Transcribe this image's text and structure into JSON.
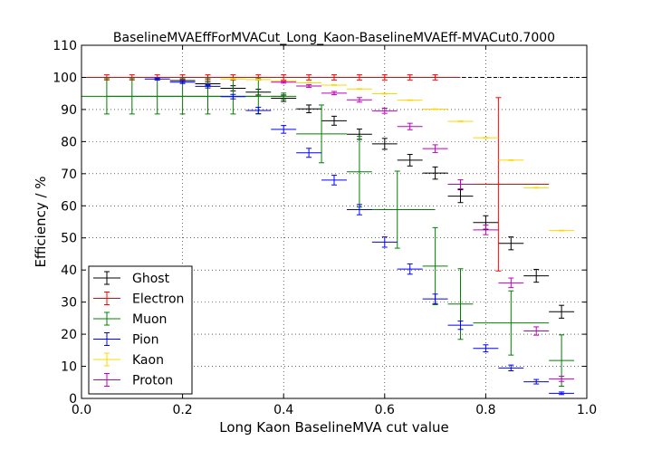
{
  "chart_data": {
    "type": "scatter",
    "title": "BaselineMVAEffForMVACut_Long_Kaon-BaselineMVAEff-MVACut0.7000",
    "xlabel": "Long Kaon BaselineMVA cut value",
    "ylabel": "Efficiency / %",
    "xlim": [
      0.0,
      1.0
    ],
    "ylim": [
      0,
      110
    ],
    "xticks": [
      "0.0",
      "0.2",
      "0.4",
      "0.6",
      "0.8",
      "1.0"
    ],
    "yticks": [
      "0",
      "10",
      "20",
      "30",
      "40",
      "50",
      "60",
      "70",
      "80",
      "90",
      "100",
      "110"
    ],
    "grid": true,
    "legend_position": "lower-left",
    "reference_line": 100,
    "series": [
      {
        "name": "Ghost",
        "color": "#000000",
        "points": [
          {
            "x": 0.2,
            "xerr": 0.025,
            "y": 99.0,
            "yerr": 0.5
          },
          {
            "x": 0.25,
            "xerr": 0.025,
            "y": 98.0,
            "yerr": 0.6
          },
          {
            "x": 0.3,
            "xerr": 0.025,
            "y": 96.6,
            "yerr": 0.8
          },
          {
            "x": 0.35,
            "xerr": 0.025,
            "y": 95.4,
            "yerr": 0.9
          },
          {
            "x": 0.4,
            "xerr": 0.025,
            "y": 93.5,
            "yerr": 1.0
          },
          {
            "x": 0.45,
            "xerr": 0.025,
            "y": 90.2,
            "yerr": 1.2
          },
          {
            "x": 0.5,
            "xerr": 0.025,
            "y": 86.5,
            "yerr": 1.4
          },
          {
            "x": 0.55,
            "xerr": 0.025,
            "y": 82.3,
            "yerr": 1.6
          },
          {
            "x": 0.6,
            "xerr": 0.025,
            "y": 79.3,
            "yerr": 1.7
          },
          {
            "x": 0.65,
            "xerr": 0.025,
            "y": 74.2,
            "yerr": 1.8
          },
          {
            "x": 0.7,
            "xerr": 0.025,
            "y": 70.2,
            "yerr": 1.9
          },
          {
            "x": 0.75,
            "xerr": 0.025,
            "y": 63.0,
            "yerr": 2.0
          },
          {
            "x": 0.8,
            "xerr": 0.025,
            "y": 54.8,
            "yerr": 2.1
          },
          {
            "x": 0.85,
            "xerr": 0.025,
            "y": 48.3,
            "yerr": 2.0
          },
          {
            "x": 0.9,
            "xerr": 0.025,
            "y": 38.2,
            "yerr": 2.0
          },
          {
            "x": 0.95,
            "xerr": 0.025,
            "y": 27.0,
            "yerr": 2.0
          }
        ]
      },
      {
        "name": "Electron",
        "color": "#ff0000",
        "points": [
          {
            "x": 0.05,
            "xerr": 0.05,
            "y": 100,
            "yerr": 0.8
          },
          {
            "x": 0.1,
            "xerr": 0.05,
            "y": 100,
            "yerr": 0.8
          },
          {
            "x": 0.15,
            "xerr": 0.05,
            "y": 100,
            "yerr": 0.8
          },
          {
            "x": 0.2,
            "xerr": 0.05,
            "y": 100,
            "yerr": 0.8
          },
          {
            "x": 0.25,
            "xerr": 0.05,
            "y": 100,
            "yerr": 0.8
          },
          {
            "x": 0.3,
            "xerr": 0.05,
            "y": 100,
            "yerr": 0.8
          },
          {
            "x": 0.35,
            "xerr": 0.05,
            "y": 100,
            "yerr": 0.8
          },
          {
            "x": 0.4,
            "xerr": 0.05,
            "y": 100,
            "yerr": 0.8
          },
          {
            "x": 0.45,
            "xerr": 0.05,
            "y": 100,
            "yerr": 0.8
          },
          {
            "x": 0.5,
            "xerr": 0.05,
            "y": 100,
            "yerr": 0.8
          },
          {
            "x": 0.55,
            "xerr": 0.05,
            "y": 100,
            "yerr": 0.8
          },
          {
            "x": 0.6,
            "xerr": 0.05,
            "y": 100,
            "yerr": 0.8
          },
          {
            "x": 0.65,
            "xerr": 0.05,
            "y": 100,
            "yerr": 0.8
          },
          {
            "x": 0.7,
            "xerr": 0.05,
            "y": 100,
            "yerr": 0.8
          },
          {
            "x": 0.825,
            "xerr": 0.1,
            "y": 66.7,
            "yerr": 27.0
          }
        ]
      },
      {
        "name": "Muon",
        "color": "#008000",
        "points": [
          {
            "x": 0.05,
            "xerr": 0.05,
            "y": 94.1,
            "yerr": 5.5
          },
          {
            "x": 0.1,
            "xerr": 0.05,
            "y": 94.1,
            "yerr": 5.5
          },
          {
            "x": 0.15,
            "xerr": 0.05,
            "y": 94.1,
            "yerr": 5.5
          },
          {
            "x": 0.2,
            "xerr": 0.05,
            "y": 94.1,
            "yerr": 5.5
          },
          {
            "x": 0.25,
            "xerr": 0.05,
            "y": 94.1,
            "yerr": 5.5
          },
          {
            "x": 0.3,
            "xerr": 0.05,
            "y": 94.1,
            "yerr": 5.5
          },
          {
            "x": 0.35,
            "xerr": 0.05,
            "y": 94.1,
            "yerr": 5.5
          },
          {
            "x": 0.4,
            "xerr": 0.025,
            "y": 94.1,
            "yerr": 1.0
          },
          {
            "x": 0.475,
            "xerr": 0.05,
            "y": 82.4,
            "yerr": 9.0
          },
          {
            "x": 0.55,
            "xerr": 0.025,
            "y": 70.6,
            "yerr": 11.0
          },
          {
            "x": 0.625,
            "xerr": 0.075,
            "y": 58.8,
            "yerr": 12.0
          },
          {
            "x": 0.7,
            "xerr": 0.025,
            "y": 41.2,
            "yerr": 12.0
          },
          {
            "x": 0.75,
            "xerr": 0.025,
            "y": 29.4,
            "yerr": 11.0
          },
          {
            "x": 0.85,
            "xerr": 0.075,
            "y": 23.5,
            "yerr": 10.0
          },
          {
            "x": 0.95,
            "xerr": 0.025,
            "y": 11.8,
            "yerr": 8.0
          }
        ]
      },
      {
        "name": "Pion",
        "color": "#0000ff",
        "points": [
          {
            "x": 0.15,
            "xerr": 0.025,
            "y": 99.5,
            "yerr": 0.3
          },
          {
            "x": 0.2,
            "xerr": 0.025,
            "y": 98.5,
            "yerr": 0.4
          },
          {
            "x": 0.25,
            "xerr": 0.025,
            "y": 97.2,
            "yerr": 0.5
          },
          {
            "x": 0.3,
            "xerr": 0.025,
            "y": 94.0,
            "yerr": 0.7
          },
          {
            "x": 0.35,
            "xerr": 0.025,
            "y": 89.7,
            "yerr": 1.0
          },
          {
            "x": 0.4,
            "xerr": 0.025,
            "y": 83.8,
            "yerr": 1.2
          },
          {
            "x": 0.45,
            "xerr": 0.025,
            "y": 76.5,
            "yerr": 1.4
          },
          {
            "x": 0.5,
            "xerr": 0.025,
            "y": 68.0,
            "yerr": 1.5
          },
          {
            "x": 0.55,
            "xerr": 0.025,
            "y": 58.8,
            "yerr": 1.6
          },
          {
            "x": 0.6,
            "xerr": 0.025,
            "y": 48.7,
            "yerr": 1.6
          },
          {
            "x": 0.65,
            "xerr": 0.025,
            "y": 40.3,
            "yerr": 1.6
          },
          {
            "x": 0.7,
            "xerr": 0.025,
            "y": 31.0,
            "yerr": 1.5
          },
          {
            "x": 0.75,
            "xerr": 0.025,
            "y": 22.8,
            "yerr": 1.3
          },
          {
            "x": 0.8,
            "xerr": 0.025,
            "y": 15.6,
            "yerr": 1.1
          },
          {
            "x": 0.85,
            "xerr": 0.025,
            "y": 9.5,
            "yerr": 0.9
          },
          {
            "x": 0.9,
            "xerr": 0.025,
            "y": 5.2,
            "yerr": 0.7
          },
          {
            "x": 0.95,
            "xerr": 0.025,
            "y": 1.6,
            "yerr": 0.4
          }
        ]
      },
      {
        "name": "Kaon",
        "color": "#ffd700",
        "points": [
          {
            "x": 0.3,
            "xerr": 0.025,
            "y": 99.5,
            "yerr": 0.1
          },
          {
            "x": 0.35,
            "xerr": 0.025,
            "y": 99.3,
            "yerr": 0.1
          },
          {
            "x": 0.4,
            "xerr": 0.025,
            "y": 98.9,
            "yerr": 0.1
          },
          {
            "x": 0.45,
            "xerr": 0.025,
            "y": 98.3,
            "yerr": 0.1
          },
          {
            "x": 0.5,
            "xerr": 0.025,
            "y": 97.6,
            "yerr": 0.1
          },
          {
            "x": 0.55,
            "xerr": 0.025,
            "y": 96.4,
            "yerr": 0.1
          },
          {
            "x": 0.6,
            "xerr": 0.025,
            "y": 94.9,
            "yerr": 0.1
          },
          {
            "x": 0.65,
            "xerr": 0.025,
            "y": 92.9,
            "yerr": 0.1
          },
          {
            "x": 0.7,
            "xerr": 0.025,
            "y": 90.1,
            "yerr": 0.1
          },
          {
            "x": 0.75,
            "xerr": 0.025,
            "y": 86.3,
            "yerr": 0.1
          },
          {
            "x": 0.8,
            "xerr": 0.025,
            "y": 81.2,
            "yerr": 0.1
          },
          {
            "x": 0.85,
            "xerr": 0.025,
            "y": 74.2,
            "yerr": 0.1
          },
          {
            "x": 0.9,
            "xerr": 0.025,
            "y": 65.6,
            "yerr": 0.1
          },
          {
            "x": 0.95,
            "xerr": 0.025,
            "y": 52.3,
            "yerr": 0.1
          }
        ]
      },
      {
        "name": "Proton",
        "color": "#bf00bf",
        "points": [
          {
            "x": 0.4,
            "xerr": 0.025,
            "y": 98.5,
            "yerr": 0.3
          },
          {
            "x": 0.45,
            "xerr": 0.025,
            "y": 97.3,
            "yerr": 0.4
          },
          {
            "x": 0.5,
            "xerr": 0.025,
            "y": 95.1,
            "yerr": 0.5
          },
          {
            "x": 0.55,
            "xerr": 0.025,
            "y": 93.0,
            "yerr": 0.7
          },
          {
            "x": 0.6,
            "xerr": 0.025,
            "y": 89.6,
            "yerr": 0.8
          },
          {
            "x": 0.65,
            "xerr": 0.025,
            "y": 84.7,
            "yerr": 1.0
          },
          {
            "x": 0.7,
            "xerr": 0.025,
            "y": 77.8,
            "yerr": 1.2
          },
          {
            "x": 0.75,
            "xerr": 0.025,
            "y": 66.7,
            "yerr": 1.4
          },
          {
            "x": 0.8,
            "xerr": 0.025,
            "y": 52.5,
            "yerr": 1.5
          },
          {
            "x": 0.85,
            "xerr": 0.025,
            "y": 36.0,
            "yerr": 1.5
          },
          {
            "x": 0.9,
            "xerr": 0.025,
            "y": 21.0,
            "yerr": 1.3
          },
          {
            "x": 0.95,
            "xerr": 0.025,
            "y": 6.1,
            "yerr": 0.8
          }
        ]
      }
    ]
  }
}
